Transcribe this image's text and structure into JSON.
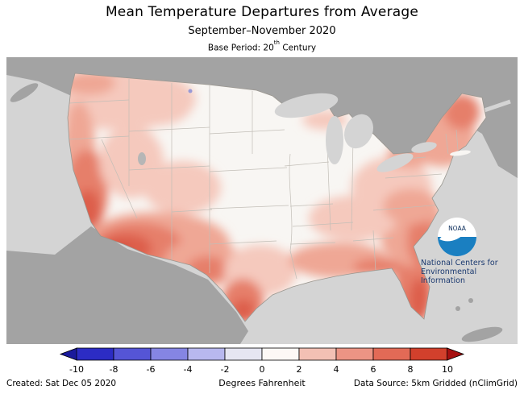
{
  "header": {
    "title": "Mean Temperature Departures from Average",
    "subtitle": "September–November 2020",
    "base_period": {
      "prefix": "Base Period: 20",
      "sup": "th",
      "suffix": " Century"
    }
  },
  "map": {
    "noaa_logo_text": "NOAA",
    "ncei_lines": [
      "National Centers for",
      "Environmental",
      "Information"
    ],
    "colors": {
      "ocean": "#d4d4d4",
      "foreign_land": "#a3a3a3",
      "us_base": "#f8f6f3",
      "anomaly_pink_light": "#f5c9bd",
      "anomaly_pink": "#efa795",
      "anomaly_red": "#e67f6a",
      "anomaly_red_deep": "#dd5f4b",
      "anomaly_red_dark": "#d04534",
      "anomaly_cool_dot": "#9a9ad6",
      "lake_gray_dot": "#b6b6b6",
      "logo_sea_blue": "#1a7fc1",
      "logo_navy": "#0b2d5b",
      "ncei_text_color": "#1c3a70"
    }
  },
  "colorbar": {
    "ticks": [
      "-10",
      "-8",
      "-6",
      "-4",
      "-2",
      "0",
      "2",
      "4",
      "6",
      "8",
      "10"
    ],
    "segment_colors": [
      "#2c2cc4",
      "#5555d6",
      "#8585e3",
      "#b8b8ef",
      "#e6e6f2",
      "#fdf8f6",
      "#f3c0b4",
      "#ec9484",
      "#e26a56",
      "#d2402c"
    ],
    "left_arrow_color": "#1a1a9c",
    "right_arrow_color": "#a61010"
  },
  "footer": {
    "created": "Created: Sat Dec 05 2020",
    "units": "Degrees Fahrenheit",
    "source": "Data Source: 5km Gridded (nClimGrid)"
  }
}
